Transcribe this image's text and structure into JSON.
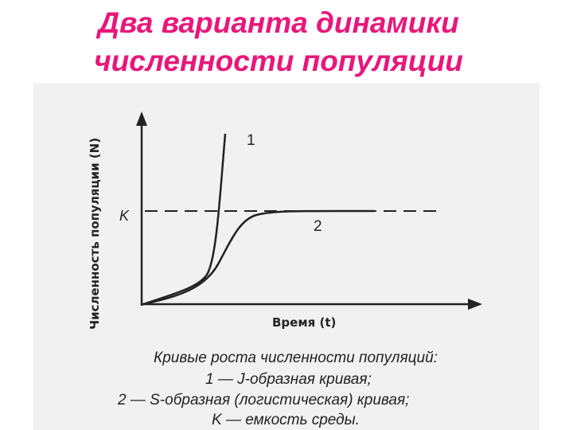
{
  "title": {
    "line1": "Два варианта динамики",
    "line2": "численности популяции"
  },
  "diagram": {
    "y_axis_label": "Численность популяции (N)",
    "x_axis_label": "Время (t)",
    "k_label": "K",
    "curve1_label": "1",
    "curve2_label": "2"
  },
  "caption": {
    "heading": "Кривые роста численности популяций:",
    "line1": "1 — J-образная кривая;",
    "line2": "2 — S-образная (логистическая) кривая;",
    "line3": "K — емкость среды."
  },
  "colors": {
    "title": "#e8177a",
    "figure_background": "#f1f1f1",
    "ink": "#222222"
  }
}
